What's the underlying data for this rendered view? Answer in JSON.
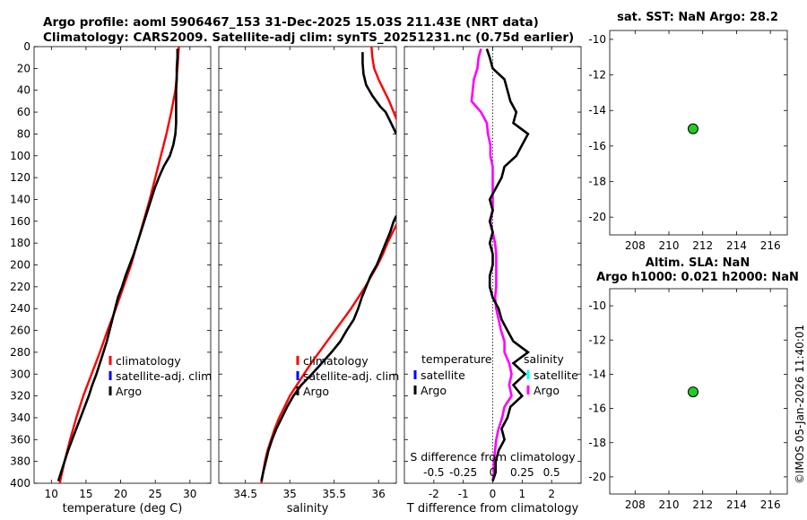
{
  "title_line1": "Argo profile: aoml 5906467_153 31-Dec-2025 15.03S 211.43E (NRT data)",
  "title_line2": "Climatology: CARS2009. Satellite-adj clim: synTS_20251231.nc (0.75d earlier)",
  "sst_title": "sat. SST: NaN Argo: 28.2",
  "sla_title1": "Altim. SLA: NaN",
  "sla_title2": "Argo h1000: 0.021 h2000: NaN",
  "timestamp": "©IMOS 05-Jan-2026 11:40:01",
  "colors": {
    "climatology": "#ff0000",
    "satellite": "#0000ff",
    "argo": "#000000",
    "sat_salinity": "#00ffff",
    "argo_salinity": "#ff00ff",
    "dot": "#22cc22"
  },
  "chart_data": [
    {
      "id": "temperature",
      "type": "line",
      "xlabel": "temperature (deg C)",
      "xlim": [
        7.5,
        33
      ],
      "xticks": [
        10,
        15,
        20,
        25,
        30
      ],
      "ylim": [
        400,
        0
      ],
      "yticks": [
        0,
        20,
        40,
        60,
        80,
        100,
        120,
        140,
        160,
        180,
        200,
        220,
        240,
        260,
        280,
        300,
        320,
        340,
        360,
        380,
        400
      ],
      "legend": [
        "climatology",
        "satellite-adj. clim",
        "Argo"
      ],
      "series": [
        {
          "name": "climatology",
          "color": "#ff0000",
          "depth": [
            0,
            20,
            40,
            60,
            80,
            100,
            120,
            140,
            160,
            180,
            200,
            220,
            240,
            260,
            280,
            300,
            320,
            340,
            360,
            380,
            400
          ],
          "values": [
            28.4,
            28.2,
            27.9,
            27.3,
            26.6,
            25.8,
            25.0,
            24.2,
            23.3,
            22.4,
            21.5,
            20.4,
            19.3,
            18.1,
            17.0,
            15.8,
            14.6,
            13.6,
            12.7,
            11.9,
            11.2
          ]
        },
        {
          "name": "Argo",
          "color": "#000000",
          "depth": [
            2,
            10,
            20,
            30,
            40,
            50,
            60,
            70,
            80,
            90,
            100,
            110,
            120,
            130,
            140,
            150,
            160,
            170,
            180,
            190,
            200,
            210,
            220,
            230,
            240,
            250,
            260,
            270,
            280,
            290,
            300,
            310,
            320,
            330,
            340,
            350,
            360,
            370,
            380,
            390,
            398
          ],
          "values": [
            28.2,
            28.2,
            28.1,
            28.1,
            28.0,
            28.0,
            28.0,
            28.0,
            27.9,
            27.6,
            27.1,
            26.2,
            25.5,
            24.9,
            24.4,
            23.9,
            23.4,
            22.9,
            22.4,
            21.9,
            21.3,
            20.7,
            20.2,
            19.6,
            19.2,
            18.8,
            18.4,
            18.0,
            17.5,
            17.0,
            16.5,
            15.9,
            15.4,
            14.8,
            14.2,
            13.6,
            13.0,
            12.4,
            11.9,
            11.4,
            11.0
          ]
        }
      ]
    },
    {
      "id": "salinity",
      "type": "line",
      "xlabel": "salinity",
      "xlim": [
        34.2,
        36.2
      ],
      "xticks": [
        34.5,
        35,
        35.5,
        36
      ],
      "ylim": [
        400,
        0
      ],
      "legend": [
        "climatology",
        "satellite-adj. clim",
        "Argo"
      ],
      "series": [
        {
          "name": "climatology",
          "color": "#ff0000",
          "depth": [
            0,
            10,
            20,
            30,
            40,
            50,
            60,
            70,
            150,
            160,
            170,
            180,
            190,
            200,
            210,
            220,
            230,
            240,
            250,
            260,
            270,
            280,
            290,
            300,
            310,
            320,
            330,
            340,
            350,
            360,
            370,
            380,
            390,
            400
          ],
          "values": [
            35.92,
            35.93,
            35.95,
            36.0,
            36.06,
            36.12,
            36.17,
            36.22,
            36.25,
            36.22,
            36.16,
            36.1,
            36.05,
            35.99,
            35.92,
            35.85,
            35.77,
            35.69,
            35.6,
            35.51,
            35.42,
            35.33,
            35.24,
            35.16,
            35.08,
            35.0,
            34.94,
            34.88,
            34.83,
            34.79,
            34.75,
            34.72,
            34.7,
            34.68
          ]
        },
        {
          "name": "Argo",
          "color": "#000000",
          "depth": [
            5,
            15,
            25,
            35,
            45,
            55,
            60,
            70,
            80,
            155,
            160,
            170,
            180,
            190,
            200,
            210,
            220,
            230,
            240,
            250,
            260,
            270,
            280,
            290,
            300,
            310,
            320,
            330,
            340,
            350,
            360,
            370,
            380,
            390,
            398
          ],
          "values": [
            35.82,
            35.82,
            35.83,
            35.86,
            35.93,
            36.02,
            36.08,
            36.14,
            36.2,
            36.2,
            36.17,
            36.13,
            36.08,
            36.03,
            35.98,
            35.91,
            35.86,
            35.81,
            35.77,
            35.72,
            35.64,
            35.57,
            35.47,
            35.36,
            35.25,
            35.13,
            35.04,
            34.97,
            34.91,
            34.85,
            34.8,
            34.76,
            34.73,
            34.7,
            34.68
          ]
        }
      ]
    },
    {
      "id": "difference",
      "type": "line",
      "xlabel": "T difference from climatology",
      "xlabel_top": "S difference from climatology",
      "xlim": [
        -3,
        3
      ],
      "xticks": [
        -2,
        -1,
        0,
        1,
        2
      ],
      "xlim_s": [
        -0.75,
        0.75
      ],
      "xticks_s": [
        "-0.5",
        "-0.25",
        "0",
        "0.25",
        "0.5"
      ],
      "ylim": [
        400,
        0
      ],
      "legend_temperature": [
        "temperature",
        "satellite",
        "Argo"
      ],
      "legend_salinity": [
        "salinity",
        "satellite",
        "Argo"
      ],
      "series": [
        {
          "name": "Argo T diff",
          "color": "#000000",
          "depth": [
            2,
            10,
            20,
            30,
            40,
            50,
            60,
            70,
            80,
            90,
            100,
            110,
            120,
            130,
            140,
            150,
            160,
            170,
            180,
            190,
            200,
            210,
            220,
            230,
            240,
            250,
            260,
            270,
            280,
            290,
            300,
            310,
            320,
            330,
            340,
            350,
            360,
            370,
            380,
            390,
            398
          ],
          "values": [
            -0.2,
            -0.1,
            0.0,
            0.4,
            0.5,
            0.6,
            0.8,
            0.7,
            1.2,
            1.0,
            0.8,
            0.4,
            0.3,
            0.1,
            -0.1,
            0.0,
            -0.1,
            0.0,
            -0.1,
            0.0,
            0.0,
            -0.1,
            -0.1,
            0.0,
            0.2,
            0.3,
            0.5,
            0.7,
            1.2,
            0.7,
            1.1,
            0.7,
            1.0,
            0.6,
            0.5,
            0.3,
            0.4,
            0.2,
            0.1,
            0.1,
            0.0
          ]
        },
        {
          "name": "Argo S diff",
          "color": "#ff00ff",
          "depth": [
            2,
            10,
            20,
            30,
            40,
            50,
            60,
            70,
            80,
            90,
            100,
            110,
            120,
            130,
            140,
            150,
            160,
            170,
            180,
            190,
            200,
            210,
            220,
            230,
            240,
            250,
            260,
            270,
            280,
            290,
            300,
            310,
            320,
            330,
            340,
            350,
            360,
            370,
            380,
            390,
            398
          ],
          "values": [
            -0.1,
            -0.12,
            -0.13,
            -0.16,
            -0.17,
            -0.18,
            -0.1,
            -0.05,
            -0.04,
            -0.02,
            -0.02,
            0.0,
            0.0,
            0.0,
            0.0,
            0.0,
            -0.02,
            0.0,
            0.02,
            0.03,
            0.03,
            0.03,
            0.03,
            0.02,
            0.03,
            0.05,
            0.07,
            0.1,
            0.1,
            0.14,
            0.16,
            0.14,
            0.16,
            0.1,
            0.08,
            0.05,
            0.03,
            0.02,
            0.01,
            0.01,
            0.0
          ]
        }
      ]
    },
    {
      "id": "map_sst",
      "type": "scatter",
      "xlim": [
        206.5,
        217
      ],
      "xticks": [
        208,
        210,
        212,
        214,
        216
      ],
      "ylim": [
        -21,
        -9.5
      ],
      "yticks": [
        -10,
        -12,
        -14,
        -16,
        -18,
        -20
      ],
      "points": [
        {
          "x": 211.43,
          "y": -15.03
        }
      ]
    },
    {
      "id": "map_sla",
      "type": "scatter",
      "xlim": [
        206.5,
        217
      ],
      "xticks": [
        208,
        210,
        212,
        214,
        216
      ],
      "ylim": [
        -21,
        -9
      ],
      "yticks": [
        -10,
        -12,
        -14,
        -16,
        -18,
        -20
      ],
      "points": [
        {
          "x": 211.43,
          "y": -15.03
        }
      ]
    }
  ]
}
